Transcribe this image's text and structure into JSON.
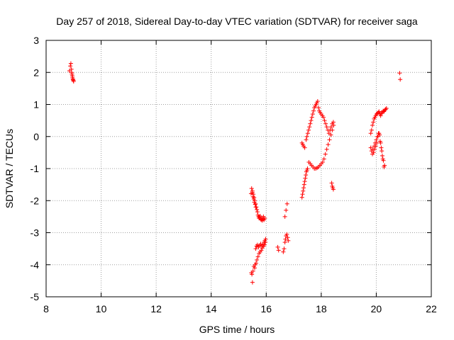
{
  "chart_data": {
    "type": "scatter",
    "title": "Day 257 of 2018, Sidereal Day-to-day VTEC variation (SDTVAR) for receiver saga",
    "xlabel": "GPS time / hours",
    "ylabel": "SDTVAR / TECUs",
    "xlim": [
      8,
      22
    ],
    "ylim": [
      -5,
      3
    ],
    "xticks": [
      "8",
      "10",
      "12",
      "14",
      "16",
      "18",
      "20",
      "22"
    ],
    "yticks": [
      "3",
      "2",
      "1",
      "0",
      "-1",
      "-2",
      "-3",
      "-4",
      "-5"
    ],
    "grid": true,
    "legend": "none",
    "marker": "+",
    "color": "#ff0000",
    "series": [
      {
        "x": [
          8.85,
          8.88,
          8.9,
          8.92,
          8.94,
          8.96,
          8.98,
          9.0,
          8.93,
          8.95,
          8.97,
          8.99,
          15.45,
          15.47,
          15.5,
          15.52,
          15.55,
          15.57,
          15.6,
          15.62,
          15.5,
          15.53,
          15.56,
          15.58,
          15.61,
          15.64,
          15.66,
          15.68,
          15.7,
          15.72,
          15.74,
          15.76,
          15.78,
          15.8,
          15.82,
          15.84,
          15.86,
          15.88,
          15.9,
          15.92,
          15.95,
          15.62,
          15.65,
          15.68,
          15.72,
          15.76,
          15.8,
          15.84,
          15.88,
          15.92,
          15.95,
          15.98,
          15.46,
          15.48,
          15.5,
          15.52,
          15.55,
          15.58,
          15.6,
          15.63,
          15.66,
          15.7,
          15.74,
          15.78,
          15.82,
          15.86,
          15.9,
          15.94,
          15.97,
          16.42,
          16.45,
          16.62,
          16.65,
          16.68,
          16.7,
          16.72,
          16.75,
          16.78,
          16.8,
          16.68,
          16.72,
          16.76,
          17.3,
          17.32,
          17.34,
          17.36,
          17.38,
          17.4,
          17.42,
          17.44,
          17.46,
          17.48,
          17.5,
          17.3,
          17.33,
          17.36,
          17.4,
          17.45,
          17.48,
          17.51,
          17.54,
          17.57,
          17.6,
          17.63,
          17.66,
          17.69,
          17.72,
          17.75,
          17.78,
          17.81,
          17.84,
          17.87,
          17.9,
          17.93,
          17.96,
          18.0,
          18.04,
          18.08,
          18.12,
          18.16,
          18.2,
          18.24,
          18.28,
          18.32,
          18.36,
          18.4,
          18.44,
          17.55,
          17.6,
          17.65,
          17.7,
          17.75,
          17.8,
          17.85,
          17.9,
          17.95,
          18.0,
          18.05,
          18.1,
          18.15,
          18.2,
          18.25,
          18.3,
          18.35,
          18.4,
          18.45,
          18.38,
          18.4,
          18.42,
          18.44,
          19.8,
          19.83,
          19.86,
          19.89,
          19.92,
          19.95,
          19.98,
          20.01,
          20.04,
          20.07,
          20.1,
          20.13,
          20.16,
          20.19,
          20.22,
          20.25,
          20.28,
          20.31,
          20.34,
          20.37,
          19.8,
          19.83,
          19.86,
          19.9,
          19.94,
          19.98,
          20.02,
          20.06,
          20.1,
          20.14,
          20.18,
          20.22,
          20.26,
          20.3,
          19.88,
          19.92,
          19.96,
          20.0,
          20.04,
          20.08,
          20.12,
          20.16,
          20.2,
          20.24,
          20.28,
          20.85,
          20.87
        ],
        "y": [
          2.05,
          2.2,
          2.28,
          2.1,
          1.95,
          1.85,
          1.78,
          1.72,
          2.0,
          1.9,
          1.8,
          1.75,
          -1.78,
          -1.62,
          -1.75,
          -1.88,
          -1.95,
          -2.05,
          -2.12,
          -2.2,
          -1.7,
          -1.8,
          -1.9,
          -2.0,
          -2.1,
          -2.2,
          -2.28,
          -2.35,
          -2.45,
          -2.5,
          -2.55,
          -2.52,
          -2.48,
          -2.58,
          -2.6,
          -2.55,
          -2.62,
          -2.58,
          -2.5,
          -2.6,
          -2.55,
          -3.5,
          -3.42,
          -3.38,
          -3.45,
          -3.4,
          -3.35,
          -3.42,
          -3.38,
          -3.3,
          -3.25,
          -3.2,
          -4.25,
          -4.3,
          -4.55,
          -4.2,
          -4.05,
          -4.1,
          -4.0,
          -3.95,
          -3.85,
          -3.75,
          -3.65,
          -3.6,
          -3.55,
          -3.48,
          -3.42,
          -3.38,
          -3.3,
          -3.45,
          -3.55,
          -3.6,
          -3.5,
          -3.3,
          -3.2,
          -3.1,
          -3.05,
          -3.15,
          -3.25,
          -2.5,
          -2.3,
          -2.1,
          -1.9,
          -1.8,
          -1.7,
          -1.6,
          -1.5,
          -1.4,
          -1.3,
          -1.2,
          -1.1,
          -1.05,
          -1.0,
          -0.2,
          -0.25,
          -0.3,
          -0.35,
          -0.1,
          0.0,
          0.1,
          0.2,
          0.3,
          0.4,
          0.5,
          0.6,
          0.7,
          0.8,
          0.9,
          0.95,
          1.0,
          1.05,
          1.1,
          0.9,
          0.8,
          0.75,
          0.7,
          0.65,
          0.6,
          0.5,
          0.4,
          0.3,
          0.2,
          0.1,
          0.2,
          0.3,
          0.4,
          0.45,
          -0.8,
          -0.85,
          -0.9,
          -0.95,
          -1.0,
          -1.0,
          -0.98,
          -0.95,
          -0.9,
          -0.85,
          -0.8,
          -0.7,
          -0.55,
          -0.4,
          -0.25,
          -0.1,
          0.05,
          0.2,
          0.35,
          -1.45,
          -1.55,
          -1.6,
          -1.65,
          0.1,
          0.2,
          0.35,
          0.45,
          0.55,
          0.6,
          0.65,
          0.7,
          0.72,
          0.75,
          0.78,
          0.7,
          0.65,
          0.72,
          0.75,
          0.8,
          0.78,
          0.82,
          0.85,
          0.88,
          -0.35,
          -0.45,
          -0.55,
          -0.5,
          -0.4,
          -0.3,
          -0.2,
          0.0,
          0.1,
          -0.15,
          -0.35,
          -0.6,
          -0.75,
          -0.9,
          -0.4,
          -0.3,
          -0.2,
          -0.1,
          0.0,
          0.1,
          0.05,
          -0.2,
          -0.45,
          -0.7,
          -0.95,
          1.98,
          1.78
        ]
      }
    ]
  }
}
